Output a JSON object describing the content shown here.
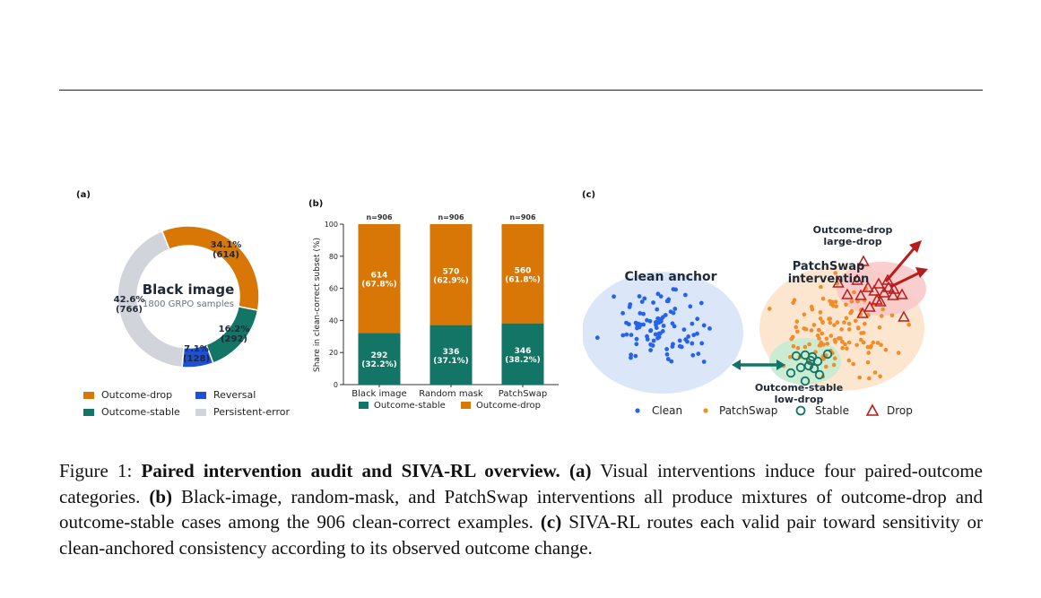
{
  "panel_a": {
    "label": "(a)",
    "center_title": "Black image",
    "center_sub": "1800 GRPO samples",
    "slices": [
      {
        "name": "Outcome-drop",
        "pct_label": "34.1%",
        "count_label": "(614)",
        "value": 614,
        "color": "#d97706"
      },
      {
        "name": "Outcome-stable",
        "pct_label": "16.2%",
        "count_label": "(292)",
        "value": 292,
        "color": "#127566"
      },
      {
        "name": "Reversal",
        "pct_label": "7.1%",
        "count_label": "(128)",
        "value": 128,
        "color": "#1d4fd8"
      },
      {
        "name": "Persistent-error",
        "pct_label": "42.6%",
        "count_label": "(766)",
        "value": 766,
        "color": "#d1d5db"
      }
    ],
    "legend": [
      "Outcome-drop",
      "Reversal",
      "Outcome-stable",
      "Persistent-error"
    ]
  },
  "panel_b": {
    "label": "(b)",
    "ylabel": "Share in clean-correct subset (%)",
    "yticks": [
      "0",
      "20",
      "40",
      "60",
      "80",
      "100"
    ],
    "legend": [
      "Outcome-stable",
      "Outcome-drop"
    ],
    "stable_color": "#127566",
    "drop_color": "#d97706"
  },
  "chart_data": {
    "type": "bar",
    "stacked": true,
    "categories": [
      "Black image",
      "Random mask",
      "PatchSwap"
    ],
    "n_labels": [
      "n=906",
      "n=906",
      "n=906"
    ],
    "ylabel": "Share in clean-correct subset (%)",
    "ylim": [
      0,
      100
    ],
    "series": [
      {
        "name": "Outcome-stable",
        "values": [
          32.2,
          37.1,
          38.2
        ],
        "counts": [
          292,
          336,
          346
        ],
        "labels": [
          "292\n(32.2%)",
          "336\n(37.1%)",
          "346\n(38.2%)"
        ]
      },
      {
        "name": "Outcome-drop",
        "values": [
          67.8,
          62.9,
          61.8
        ],
        "counts": [
          614,
          570,
          560
        ],
        "labels": [
          "614\n(67.8%)",
          "570\n(62.9%)",
          "560\n(61.8%)"
        ]
      }
    ],
    "legend_position": "bottom",
    "grid": false
  },
  "panel_c": {
    "label": "(c)",
    "clean_anchor": "Clean anchor",
    "patchswap_line1": "PatchSwap",
    "patchswap_line2": "intervention",
    "drop_line1": "Outcome-drop",
    "drop_line2": "large-drop",
    "stable_line1": "Outcome-stable",
    "stable_line2": "low-drop",
    "legend": [
      "Clean",
      "PatchSwap",
      "Stable",
      "Drop"
    ],
    "colors": {
      "clean": "#2563eb",
      "patchswap": "#f28c28",
      "stable": "#127566",
      "drop": "#b91c1c"
    }
  },
  "caption": {
    "figure_label": "Figure 1:",
    "title": "Paired intervention audit and SIVA-RL overview.",
    "a_label": "(a)",
    "a_text": "Visual interventions induce four paired-outcome categories.",
    "b_label": "(b)",
    "b_text": "Black-image, random-mask, and PatchSwap interventions all produce mixtures of outcome-drop and outcome-stable cases among the 906 clean-correct examples.",
    "c_label": "(c)",
    "c_text": "SIVA-RL routes each valid pair toward sensitivity or clean-anchored consistency according to its observed outcome change."
  }
}
